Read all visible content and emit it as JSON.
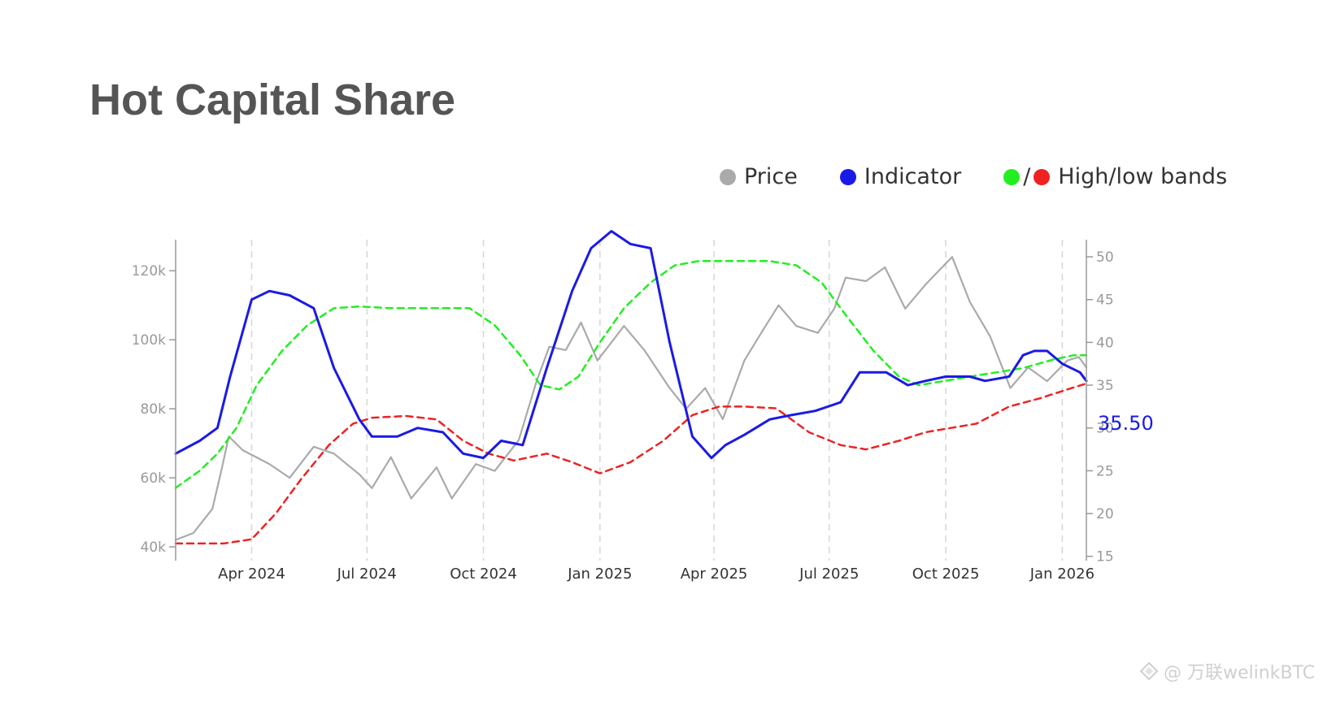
{
  "title": "Hot Capital Share",
  "legend": {
    "price": "Price",
    "indicator": "Indicator",
    "bands": "High/low bands",
    "slash": "/"
  },
  "colors": {
    "price": "#aaaaaa",
    "indicator": "#1a1ae6",
    "high_band": "#22ee22",
    "low_band": "#ee2222",
    "title": "#555555",
    "axis": "#999999"
  },
  "watermark": "@ 万联welinkBTC",
  "chart_data": {
    "type": "line",
    "title": "Hot Capital Share",
    "x_ticks": [
      "Apr 2024",
      "Jul 2024",
      "Oct 2024",
      "Jan 2025",
      "Apr 2025",
      "Jul 2025",
      "Oct 2025",
      "Jan 2026"
    ],
    "x_tick_dates": [
      "2024-04-01",
      "2024-07-01",
      "2024-10-01",
      "2025-01-01",
      "2025-04-01",
      "2025-07-01",
      "2025-10-01",
      "2026-01-01"
    ],
    "x_range": [
      "2024-02-01",
      "2026-01-20"
    ],
    "y_left": {
      "ticks": [
        "40k",
        "60k",
        "80k",
        "100k",
        "120k"
      ],
      "tick_values": [
        40000,
        60000,
        80000,
        100000,
        120000
      ],
      "range": [
        36000,
        129000
      ]
    },
    "y_right": {
      "ticks": [
        "15",
        "20",
        "25",
        "30",
        "35",
        "40",
        "45",
        "50"
      ],
      "tick_values": [
        15,
        20,
        25,
        30,
        35,
        40,
        45,
        50
      ],
      "range": [
        14.5,
        52
      ]
    },
    "grid": "vertical dashed at x ticks",
    "last_value_label": "35.50",
    "series": [
      {
        "name": "Price",
        "axis": "left",
        "x": [
          "2024-02-01",
          "2024-02-15",
          "2024-03-01",
          "2024-03-08",
          "2024-03-14",
          "2024-03-25",
          "2024-04-15",
          "2024-05-01",
          "2024-05-20",
          "2024-06-05",
          "2024-06-25",
          "2024-07-05",
          "2024-07-20",
          "2024-08-05",
          "2024-08-25",
          "2024-09-06",
          "2024-09-25",
          "2024-10-10",
          "2024-10-29",
          "2024-11-12",
          "2024-11-22",
          "2024-12-05",
          "2024-12-17",
          "2024-12-30",
          "2025-01-20",
          "2025-02-05",
          "2025-02-25",
          "2025-03-10",
          "2025-03-25",
          "2025-04-08",
          "2025-04-25",
          "2025-05-10",
          "2025-05-22",
          "2025-06-05",
          "2025-06-22",
          "2025-07-05",
          "2025-07-14",
          "2025-07-30",
          "2025-08-14",
          "2025-08-30",
          "2025-09-15",
          "2025-10-06",
          "2025-10-20",
          "2025-11-05",
          "2025-11-21",
          "2025-12-05",
          "2025-12-20",
          "2026-01-05",
          "2026-01-14",
          "2026-01-20"
        ],
        "values": [
          42000,
          44000,
          51000,
          62000,
          72000,
          68000,
          64000,
          60000,
          69000,
          67000,
          61000,
          57000,
          66000,
          54000,
          63000,
          54000,
          64000,
          62000,
          71000,
          88000,
          98000,
          97000,
          105000,
          94000,
          104000,
          97000,
          86000,
          80000,
          86000,
          77000,
          94000,
          103000,
          110000,
          104000,
          102000,
          109000,
          118000,
          117000,
          121000,
          109000,
          116000,
          124000,
          111000,
          101000,
          86000,
          92000,
          88000,
          94000,
          95000,
          92000
        ]
      },
      {
        "name": "Indicator",
        "axis": "right",
        "x": [
          "2024-02-01",
          "2024-02-20",
          "2024-03-05",
          "2024-03-15",
          "2024-04-01",
          "2024-04-15",
          "2024-05-01",
          "2024-05-20",
          "2024-06-05",
          "2024-06-25",
          "2024-07-05",
          "2024-07-25",
          "2024-08-10",
          "2024-08-30",
          "2024-09-15",
          "2024-10-01",
          "2024-10-15",
          "2024-11-01",
          "2024-11-20",
          "2024-12-10",
          "2024-12-25",
          "2025-01-10",
          "2025-01-25",
          "2025-02-10",
          "2025-02-25",
          "2025-03-15",
          "2025-03-30",
          "2025-04-10",
          "2025-04-25",
          "2025-05-15",
          "2025-06-01",
          "2025-06-20",
          "2025-07-10",
          "2025-07-25",
          "2025-08-15",
          "2025-09-01",
          "2025-09-15",
          "2025-10-01",
          "2025-10-20",
          "2025-11-01",
          "2025-11-20",
          "2025-12-01",
          "2025-12-10",
          "2025-12-20",
          "2026-01-01",
          "2026-01-15",
          "2026-01-20"
        ],
        "values": [
          27,
          28.5,
          30,
          36,
          45,
          46,
          45.5,
          44,
          37,
          31,
          29,
          29,
          30,
          29.5,
          27,
          26.5,
          28.5,
          28,
          37,
          46,
          51,
          53,
          51.5,
          51,
          40,
          29,
          26.5,
          28,
          29.2,
          31,
          31.5,
          32,
          33,
          36.5,
          36.5,
          35,
          35.5,
          36,
          36,
          35.5,
          36,
          38.5,
          39,
          39,
          37.5,
          36.5,
          35.5
        ]
      },
      {
        "name": "High band",
        "axis": "right",
        "x": [
          "2024-02-01",
          "2024-02-20",
          "2024-03-05",
          "2024-03-20",
          "2024-04-05",
          "2024-04-25",
          "2024-05-15",
          "2024-06-05",
          "2024-06-25",
          "2024-07-20",
          "2024-08-20",
          "2024-09-20",
          "2024-10-10",
          "2024-10-30",
          "2024-11-15",
          "2024-11-30",
          "2024-12-15",
          "2025-01-01",
          "2025-01-20",
          "2025-02-10",
          "2025-03-01",
          "2025-03-20",
          "2025-04-15",
          "2025-05-15",
          "2025-06-05",
          "2025-06-25",
          "2025-07-15",
          "2025-08-05",
          "2025-08-25",
          "2025-09-10",
          "2025-09-30",
          "2025-10-20",
          "2025-11-10",
          "2025-12-01",
          "2025-12-25",
          "2026-01-10",
          "2026-01-20"
        ],
        "values": [
          23,
          25,
          27,
          30,
          35,
          39,
          42,
          44,
          44.2,
          44,
          44,
          44,
          42,
          38.5,
          35,
          34.5,
          36,
          40,
          44,
          47,
          49,
          49.5,
          49.5,
          49.5,
          49,
          47,
          43,
          39,
          36,
          35,
          35.5,
          36,
          36.5,
          37,
          38,
          38.5,
          38.5
        ]
      },
      {
        "name": "Low band",
        "axis": "right",
        "x": [
          "2024-02-01",
          "2024-02-20",
          "2024-03-10",
          "2024-04-01",
          "2024-04-20",
          "2024-05-10",
          "2024-06-01",
          "2024-06-20",
          "2024-07-05",
          "2024-08-01",
          "2024-08-25",
          "2024-09-15",
          "2024-10-05",
          "2024-10-25",
          "2024-11-20",
          "2024-12-10",
          "2025-01-01",
          "2025-01-25",
          "2025-02-20",
          "2025-03-15",
          "2025-04-05",
          "2025-04-25",
          "2025-05-20",
          "2025-06-15",
          "2025-07-10",
          "2025-07-30",
          "2025-08-25",
          "2025-09-15",
          "2025-10-05",
          "2025-10-25",
          "2025-11-20",
          "2025-12-15",
          "2026-01-05",
          "2026-01-20"
        ],
        "values": [
          16.5,
          16.5,
          16.5,
          17,
          20,
          24,
          28,
          30.5,
          31.2,
          31.4,
          31,
          28.5,
          27,
          26.2,
          27,
          26,
          24.7,
          26,
          28.5,
          31.5,
          32.5,
          32.5,
          32.3,
          29.5,
          28,
          27.5,
          28.5,
          29.5,
          30,
          30.5,
          32.5,
          33.5,
          34.5,
          35.2
        ]
      }
    ]
  }
}
